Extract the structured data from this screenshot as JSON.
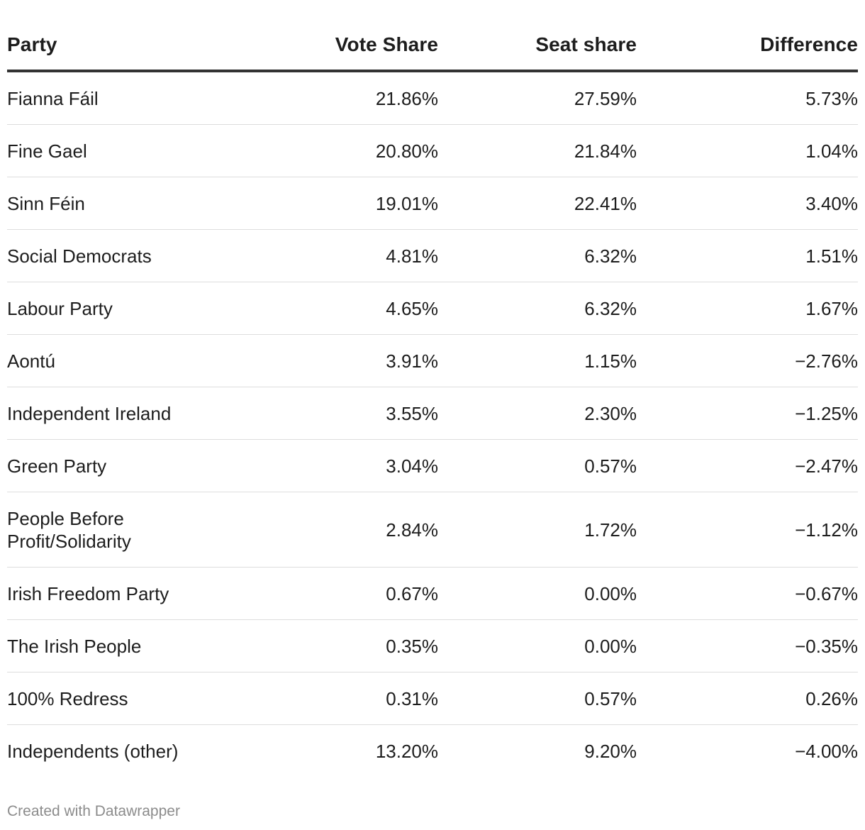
{
  "chart_data": {
    "type": "table",
    "columns": [
      "Party",
      "Vote Share",
      "Seat share",
      "Difference"
    ],
    "rows": [
      {
        "party": "Fianna Fáil",
        "vote_share": "21.86%",
        "seat_share": "27.59%",
        "difference": "5.73%"
      },
      {
        "party": "Fine Gael",
        "vote_share": "20.80%",
        "seat_share": "21.84%",
        "difference": "1.04%"
      },
      {
        "party": "Sinn Féin",
        "vote_share": "19.01%",
        "seat_share": "22.41%",
        "difference": "3.40%"
      },
      {
        "party": "Social Democrats",
        "vote_share": "4.81%",
        "seat_share": "6.32%",
        "difference": "1.51%"
      },
      {
        "party": "Labour Party",
        "vote_share": "4.65%",
        "seat_share": "6.32%",
        "difference": "1.67%"
      },
      {
        "party": "Aontú",
        "vote_share": "3.91%",
        "seat_share": "1.15%",
        "difference": "−2.76%"
      },
      {
        "party": "Independent Ireland",
        "vote_share": "3.55%",
        "seat_share": "2.30%",
        "difference": "−1.25%"
      },
      {
        "party": "Green Party",
        "vote_share": "3.04%",
        "seat_share": "0.57%",
        "difference": "−2.47%"
      },
      {
        "party": "People Before Profit/Solidarity",
        "vote_share": "2.84%",
        "seat_share": "1.72%",
        "difference": "−1.12%"
      },
      {
        "party": "Irish Freedom Party",
        "vote_share": "0.67%",
        "seat_share": "0.00%",
        "difference": "−0.67%"
      },
      {
        "party": "The Irish People",
        "vote_share": "0.35%",
        "seat_share": "0.00%",
        "difference": "−0.35%"
      },
      {
        "party": "100% Redress",
        "vote_share": "0.31%",
        "seat_share": "0.57%",
        "difference": "0.26%"
      },
      {
        "party": "Independents (other)",
        "vote_share": "13.20%",
        "seat_share": "9.20%",
        "difference": "−4.00%"
      }
    ]
  },
  "footer": {
    "credit": "Created with Datawrapper"
  },
  "colors": {
    "text": "#1d1d1d",
    "header_rule": "#333333",
    "row_rule": "#dddddd",
    "footer_text": "#8c8c8c"
  }
}
